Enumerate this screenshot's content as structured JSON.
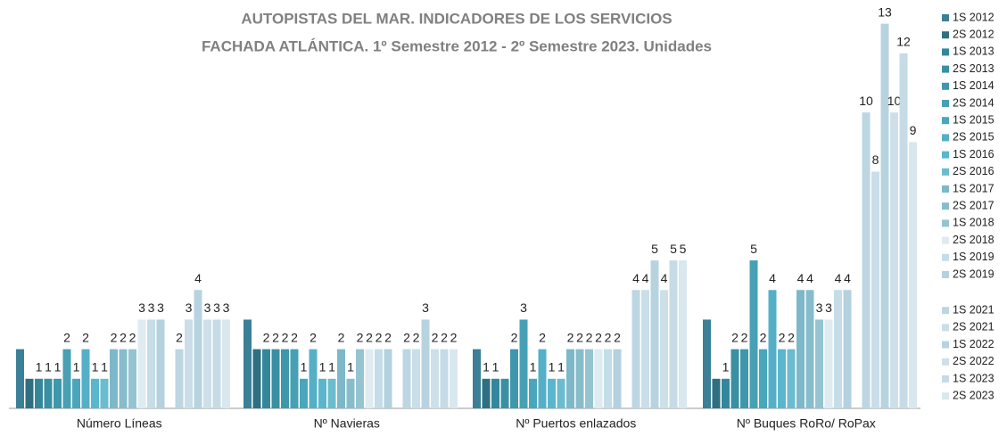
{
  "chart_data": {
    "type": "bar",
    "title": "AUTOPISTAS DEL MAR. INDICADORES  DE LOS SERVICIOS",
    "subtitle": "FACHADA ATLÁNTICA. 1º Semestre 2012 -  2º Semestre 2023. Unidades",
    "categories": [
      "Número  Líneas",
      "Nº  Navieras",
      "Nº  Puertos enlazados",
      "Nº Buques RoRo/ RoPax"
    ],
    "ylim": [
      0,
      13.5
    ],
    "legend": "right",
    "series": [
      {
        "name": "1S 2012",
        "color": "#3b8096",
        "values": [
          2,
          3,
          2,
          3
        ],
        "value_labels": [
          null,
          null,
          null,
          null
        ]
      },
      {
        "name": "2S 2012",
        "color": "#2f6f82",
        "values": [
          1,
          2,
          1,
          1
        ],
        "value_labels": [
          null,
          null,
          "1",
          null
        ]
      },
      {
        "name": "1S 2013",
        "color": "#34879b",
        "values": [
          1,
          2,
          1,
          1
        ],
        "value_labels": [
          "1",
          "2",
          "1",
          "1"
        ]
      },
      {
        "name": "2S 2013",
        "color": "#3a8fa2",
        "values": [
          1,
          2,
          1,
          2
        ],
        "value_labels": [
          "1",
          "2",
          null,
          "2"
        ]
      },
      {
        "name": "1S 2014",
        "color": "#3e97aa",
        "values": [
          1,
          2,
          2,
          2
        ],
        "value_labels": [
          "1",
          "2",
          "2",
          "2"
        ]
      },
      {
        "name": "2S 2014",
        "color": "#47a0b3",
        "values": [
          2,
          2,
          3,
          5
        ],
        "value_labels": [
          "2",
          "2",
          "3",
          "5"
        ]
      },
      {
        "name": "1S 2015",
        "color": "#4aa6bb",
        "values": [
          1,
          1,
          1,
          2
        ],
        "value_labels": [
          "1",
          "1",
          "1",
          "2"
        ]
      },
      {
        "name": "2S 2015",
        "color": "#55b0c7",
        "values": [
          2,
          2,
          2,
          4
        ],
        "value_labels": [
          "2",
          "2",
          "2",
          "4"
        ]
      },
      {
        "name": "1S 2016",
        "color": "#59b6cc",
        "values": [
          1,
          1,
          1,
          2
        ],
        "value_labels": [
          "1",
          "1",
          "1",
          "2"
        ]
      },
      {
        "name": "2S 2016",
        "color": "#6bbcce",
        "values": [
          1,
          1,
          1,
          2
        ],
        "value_labels": [
          "1",
          "1",
          "1",
          "2"
        ]
      },
      {
        "name": "1S 2017",
        "color": "#7db8c8",
        "values": [
          2,
          2,
          2,
          4
        ],
        "value_labels": [
          "2",
          "2",
          "2",
          "4"
        ]
      },
      {
        "name": "2S 2017",
        "color": "#87bdcb",
        "values": [
          2,
          1,
          2,
          4
        ],
        "value_labels": [
          "2",
          "1",
          "2",
          "4"
        ]
      },
      {
        "name": "1S 2018",
        "color": "#95c4d1",
        "values": [
          2,
          2,
          2,
          3
        ],
        "value_labels": [
          "2",
          "2",
          "2",
          "3"
        ]
      },
      {
        "name": "2S 2018",
        "color": "#deebf1",
        "values": [
          3,
          2,
          2,
          3
        ],
        "value_labels": [
          "3",
          "2",
          "2",
          "3"
        ]
      },
      {
        "name": "1S 2019",
        "color": "#c5dde7",
        "values": [
          3,
          2,
          2,
          4
        ],
        "value_labels": [
          "3",
          "2",
          "2",
          "4"
        ]
      },
      {
        "name": "2S 2019",
        "color": "#b3d1de",
        "values": [
          3,
          2,
          2,
          4
        ],
        "value_labels": [
          "3",
          "2",
          "2",
          "4"
        ]
      },
      {
        "name": "1S 2021",
        "color": "#bcd6e2",
        "values": [
          2,
          2,
          4,
          10
        ],
        "value_labels": [
          "2",
          "2",
          "4",
          "10"
        ]
      },
      {
        "name": "2S 2021",
        "color": "#c9dee8",
        "values": [
          3,
          2,
          4,
          8
        ],
        "value_labels": [
          "3",
          "2",
          "4",
          "8"
        ]
      },
      {
        "name": "1S 2022",
        "color": "#b8d3e0",
        "values": [
          4,
          3,
          5,
          13
        ],
        "value_labels": [
          "4",
          "3",
          "5",
          "13"
        ]
      },
      {
        "name": "2S 2022",
        "color": "#cde0e9",
        "values": [
          3,
          2,
          4,
          10
        ],
        "value_labels": [
          "3",
          "2",
          "4",
          "10"
        ]
      },
      {
        "name": "1S 2023",
        "color": "#c6dbe5",
        "values": [
          3,
          2,
          5,
          12
        ],
        "value_labels": [
          "3",
          "2",
          "5",
          "12"
        ]
      },
      {
        "name": "2S 2023",
        "color": "#d9e7ee",
        "values": [
          3,
          2,
          5,
          9
        ],
        "value_labels": [
          "3",
          "2",
          "5",
          "9"
        ]
      }
    ]
  }
}
